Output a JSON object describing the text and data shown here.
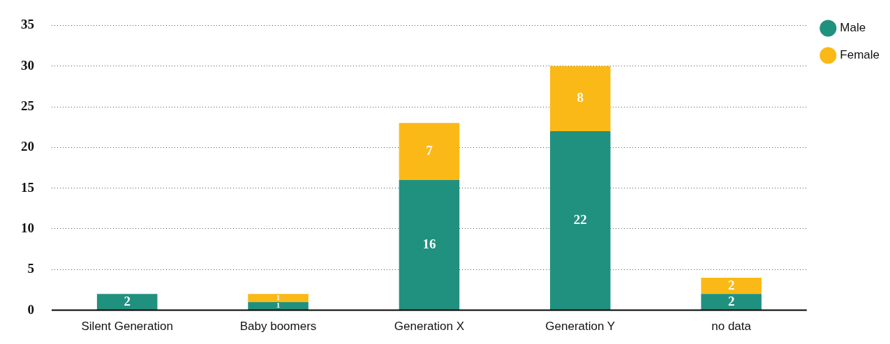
{
  "chart_data": {
    "type": "bar",
    "stacked": true,
    "categories": [
      "Silent Generation",
      "Baby boomers",
      "Generation X",
      "Generation Y",
      "no data"
    ],
    "series": [
      {
        "name": "Male",
        "color": "#21917f",
        "values": [
          2,
          1,
          16,
          22,
          2
        ]
      },
      {
        "name": "Female",
        "color": "#fbb917",
        "values": [
          null,
          1,
          7,
          8,
          2
        ]
      }
    ],
    "ylim": [
      0,
      35
    ],
    "yticks": [
      0,
      5,
      10,
      15,
      20,
      25,
      30,
      35
    ],
    "grid": "y",
    "legend": "top right",
    "data_labels": true
  }
}
